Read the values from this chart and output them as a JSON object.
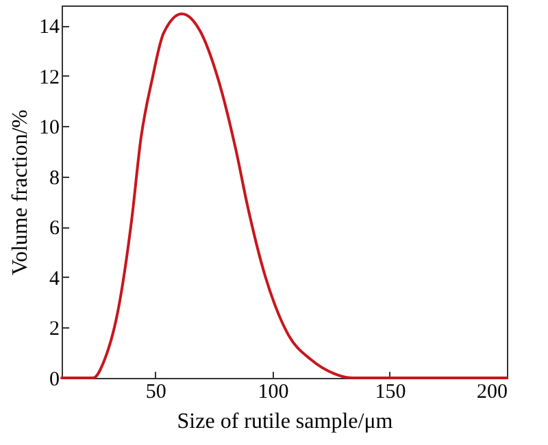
{
  "chart_data": {
    "type": "line",
    "xlabel": "Size of rutile sample/μm",
    "ylabel": "Volume fraction/%",
    "xlim": [
      10,
      200
    ],
    "xticks": [
      50,
      100,
      150,
      200
    ],
    "ylim": [
      0,
      14.8
    ],
    "yticks": [
      0,
      2,
      4,
      6,
      8,
      10,
      12,
      14
    ],
    "grid": false,
    "marker": "none",
    "line_style": "solid",
    "series": [
      {
        "color": "#c8161d",
        "x": [
          10,
          23.5,
          28.3,
          34.1,
          39.9,
          43.8,
          48.7,
          53.5,
          61.3,
          69,
          76.7,
          84.5,
          89.4,
          97,
          101,
          106.8,
          116.5,
          126,
          134,
          200
        ],
        "values": [
          0,
          0,
          0.72,
          2.7,
          6.3,
          9.5,
          11.9,
          13.7,
          14.47,
          13.8,
          11.9,
          9.0,
          6.8,
          4.0,
          2.9,
          1.7,
          0.72,
          0.18,
          0,
          0
        ]
      }
    ]
  }
}
